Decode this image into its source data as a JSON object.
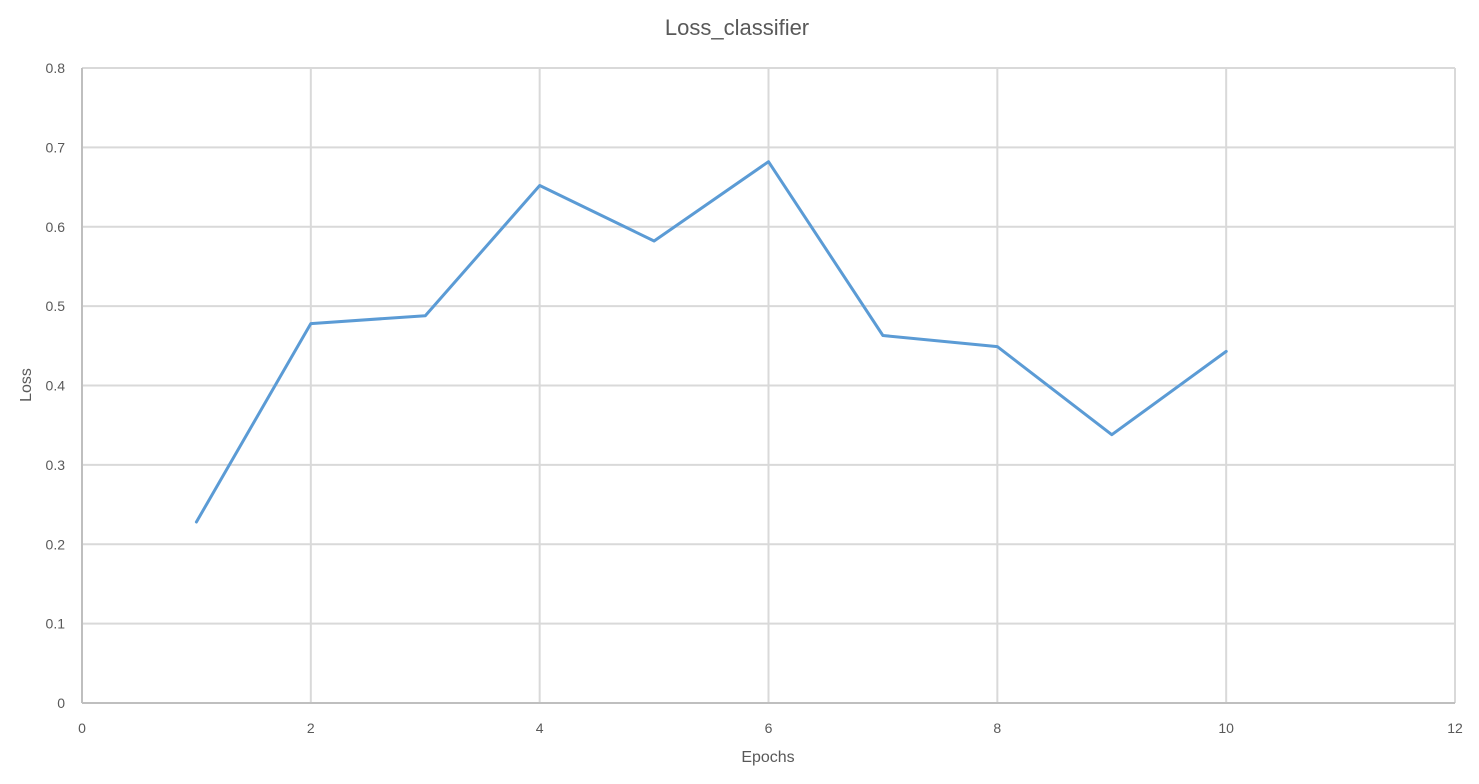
{
  "chart_data": {
    "type": "scatter",
    "title": "Loss_classifier",
    "xlabel": "Epochs",
    "ylabel": "Loss",
    "xlim": [
      0,
      12
    ],
    "ylim": [
      0,
      0.8
    ],
    "xticks": [
      0,
      2,
      4,
      6,
      8,
      10,
      12
    ],
    "yticks": [
      0,
      0.1,
      0.2,
      0.3,
      0.4,
      0.5,
      0.6,
      0.7,
      0.8
    ],
    "grid": true,
    "legend": "none",
    "series": [
      {
        "x": [
          1,
          2,
          3,
          4,
          5,
          6,
          7,
          8,
          9,
          10
        ],
        "y": [
          0.228,
          0.478,
          0.488,
          0.652,
          0.582,
          0.682,
          0.463,
          0.449,
          0.338,
          0.443
        ],
        "color": "#5b9bd5",
        "style": "smooth-lines-no-markers"
      }
    ]
  }
}
